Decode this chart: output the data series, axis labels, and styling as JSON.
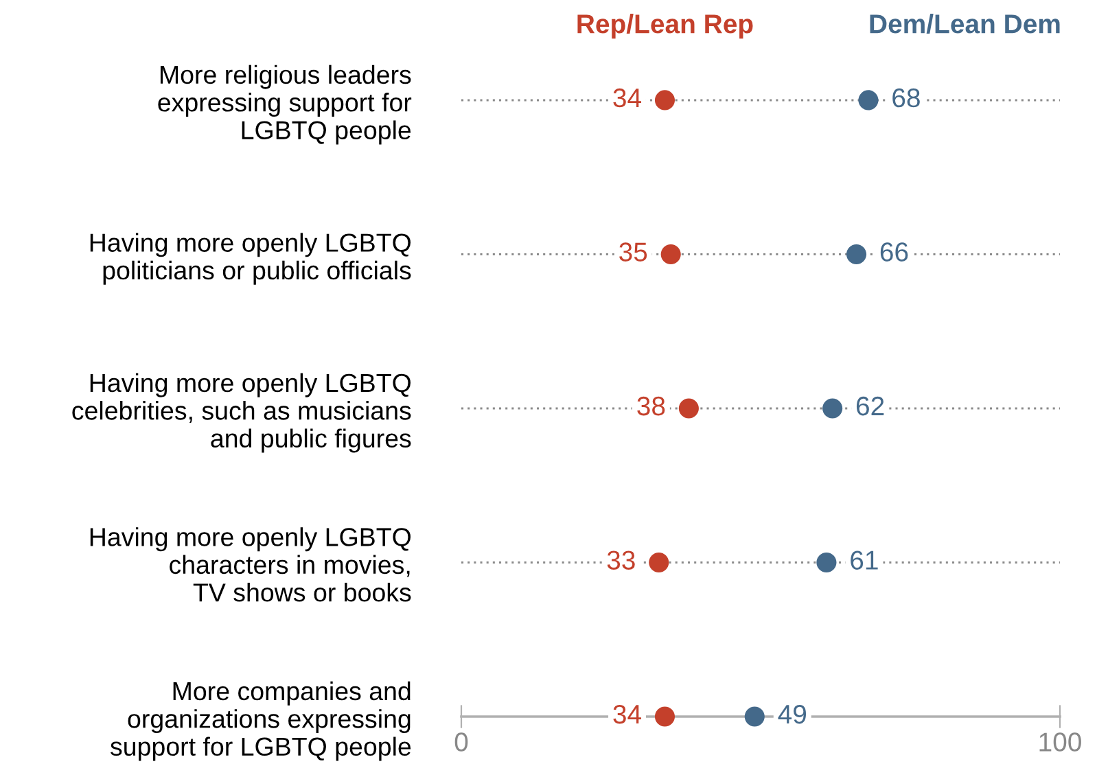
{
  "chart_data": {
    "type": "scatter",
    "orientation": "horizontal",
    "categories": [
      "More religious leaders\nexpressing support for\nLGBTQ people",
      "Having more openly LGBTQ\npoliticians or public officials",
      "Having more openly LGBTQ\ncelebrities, such as musicians\nand public figures",
      "Having more openly LGBTQ\ncharacters in movies,\nTV shows or books",
      "More companies and\norganizations expressing\nsupport for LGBTQ people"
    ],
    "series": [
      {
        "name": "Rep/Lean Rep",
        "color": "#c4402b",
        "values": [
          34,
          35,
          38,
          33,
          34
        ]
      },
      {
        "name": "Dem/Lean Dem",
        "color": "#44698a",
        "values": [
          68,
          66,
          62,
          61,
          49
        ]
      }
    ],
    "xlim": [
      0,
      100
    ],
    "xticks": [
      0,
      100
    ],
    "grid": "y",
    "legend": "top",
    "marker": "circle",
    "data_labels": true
  }
}
